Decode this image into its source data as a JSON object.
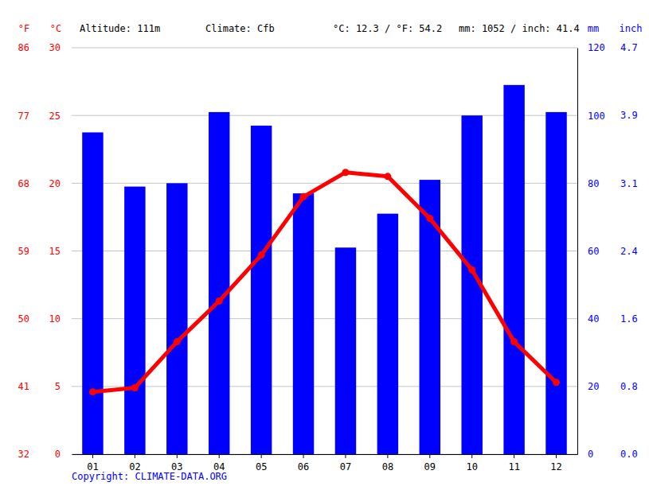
{
  "chart_data": {
    "type": "bar",
    "categories": [
      "01",
      "02",
      "03",
      "04",
      "05",
      "06",
      "07",
      "08",
      "09",
      "10",
      "11",
      "12"
    ],
    "series": [
      {
        "type": "bar",
        "axis": "y2",
        "color": "#0000ff",
        "values": [
          95,
          79,
          80,
          101,
          97,
          77,
          61,
          71,
          81,
          100,
          109,
          101
        ]
      },
      {
        "type": "line",
        "color": "#ff0000",
        "marker": "circle",
        "values": [
          4.6,
          4.9,
          8.3,
          11.3,
          14.7,
          19.0,
          20.8,
          20.5,
          17.4,
          13.6,
          8.3,
          5.3
        ]
      }
    ],
    "y_label": "°C",
    "ylim": [
      0,
      30
    ],
    "yticks": [
      0,
      5,
      10,
      15,
      20,
      25,
      30
    ],
    "y2_label": "mm",
    "y2lim": [
      0,
      120
    ],
    "y2ticks": [
      0,
      20,
      40,
      60,
      80,
      100,
      120
    ],
    "y3_label": "°F",
    "y3lim": [
      32,
      86
    ],
    "y3ticks": [
      32,
      41,
      50,
      59,
      68,
      77,
      86
    ],
    "y4_label": "inch",
    "y4lim": [
      0,
      4.724
    ],
    "y4ticks": [
      {
        "value": 0,
        "label": "0.0"
      },
      {
        "value": 0.787,
        "label": "0.8"
      },
      {
        "value": 1.575,
        "label": "1.6"
      },
      {
        "value": 2.362,
        "label": "2.4"
      },
      {
        "value": 3.15,
        "label": "3.1"
      },
      {
        "value": 3.937,
        "label": "3.9"
      },
      {
        "value": 4.724,
        "label": "4.7"
      }
    ],
    "grid": true,
    "annotations": [
      "Altitude: 111m",
      "Climate: Cfb",
      "°C: 12.3 / °F: 54.2",
      "mm: 1052 / inch: 41.4",
      "Copyright: CLIMATE-DATA.ORG"
    ]
  }
}
